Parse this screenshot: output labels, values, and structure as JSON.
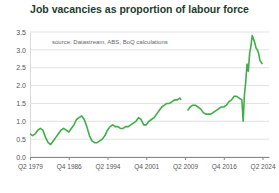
{
  "chart_data": {
    "type": "line",
    "title": "Job vacancies as proportion of labour force",
    "annotations": [
      "source: Datastream, ABS, BoQ calculations"
    ],
    "color": "#3fae49",
    "grid": true,
    "x": [
      1979.25,
      1979.75,
      1980.25,
      1980.75,
      1981.25,
      1981.75,
      1982.25,
      1982.75,
      1983.25,
      1983.75,
      1984.25,
      1984.75,
      1985.25,
      1985.75,
      1986.25,
      1986.75,
      1987.25,
      1987.75,
      1988.25,
      1988.75,
      1989.25,
      1989.75,
      1990.25,
      1990.75,
      1991.25,
      1991.75,
      1992.25,
      1992.75,
      1993.25,
      1993.75,
      1994.25,
      1994.75,
      1995.25,
      1995.75,
      1996.25,
      1996.75,
      1997.25,
      1997.75,
      1998.25,
      1998.75,
      1999.25,
      1999.75,
      2000.25,
      2000.75,
      2001.25,
      2001.75,
      2002.25,
      2002.75,
      2003.25,
      2003.75,
      2004.25,
      2004.75,
      2005.25,
      2005.75,
      2006.25,
      2006.75,
      2007.25,
      2007.75,
      2008.25,
      2008.5,
      2009.0,
      2009.75,
      2010.25,
      2010.75,
      2011.25,
      2011.75,
      2012.25,
      2012.75,
      2013.25,
      2013.75,
      2014.25,
      2014.75,
      2015.25,
      2015.75,
      2016.25,
      2016.75,
      2017.25,
      2017.75,
      2018.25,
      2018.75,
      2019.25,
      2019.75,
      2020.25,
      2020.5,
      2020.75,
      2021.0,
      2021.25,
      2021.5,
      2021.75,
      2022.0,
      2022.25,
      2022.5,
      2022.75,
      2023.0,
      2023.25,
      2023.5,
      2023.75,
      2024.0,
      2024.25
    ],
    "values": [
      0.65,
      0.6,
      0.65,
      0.75,
      0.8,
      0.75,
      0.55,
      0.4,
      0.35,
      0.45,
      0.55,
      0.65,
      0.75,
      0.8,
      0.75,
      0.7,
      0.8,
      0.9,
      1.05,
      1.1,
      1.15,
      1.05,
      0.85,
      0.6,
      0.45,
      0.4,
      0.4,
      0.45,
      0.5,
      0.6,
      0.75,
      0.85,
      0.9,
      0.85,
      0.85,
      0.8,
      0.8,
      0.85,
      0.85,
      0.9,
      0.95,
      1.0,
      1.1,
      1.05,
      0.9,
      0.9,
      1.0,
      1.05,
      1.1,
      1.2,
      1.3,
      1.4,
      1.45,
      1.5,
      1.5,
      1.55,
      1.6,
      1.6,
      1.65,
      1.6,
      null,
      1.3,
      1.4,
      1.45,
      1.45,
      1.4,
      1.35,
      1.25,
      1.2,
      1.2,
      1.2,
      1.25,
      1.3,
      1.35,
      1.4,
      1.4,
      1.45,
      1.55,
      1.6,
      1.7,
      1.7,
      1.65,
      1.6,
      1.0,
      1.75,
      2.1,
      2.6,
      2.4,
      2.9,
      3.1,
      3.4,
      3.3,
      3.2,
      3.05,
      3.0,
      2.9,
      2.7,
      2.65,
      2.6
    ],
    "xlim": [
      1979.25,
      2025.5
    ],
    "xticks": [
      {
        "value": 1979.25,
        "label": "Q2 1979"
      },
      {
        "value": 1986.75,
        "label": "Q4 1986"
      },
      {
        "value": 1994.25,
        "label": "Q2 1994"
      },
      {
        "value": 2001.75,
        "label": "Q4 2001"
      },
      {
        "value": 2009.25,
        "label": "Q2 2009"
      },
      {
        "value": 2016.75,
        "label": "Q4 2016"
      },
      {
        "value": 2024.25,
        "label": "Q2 2024"
      }
    ],
    "ylim": [
      0,
      3.5
    ],
    "yticks": [
      {
        "value": 0,
        "label": "0.0"
      },
      {
        "value": 0.5,
        "label": "0.5"
      },
      {
        "value": 1,
        "label": "1.0"
      },
      {
        "value": 1.5,
        "label": "1.5"
      },
      {
        "value": 2,
        "label": "2.0"
      },
      {
        "value": 2.5,
        "label": "2.5"
      },
      {
        "value": 3,
        "label": "3.0"
      },
      {
        "value": 3.5,
        "label": "3.5"
      }
    ]
  }
}
